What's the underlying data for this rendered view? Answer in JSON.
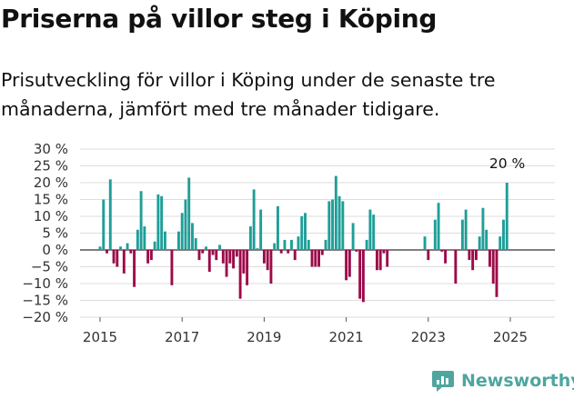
{
  "title": "Priserna på villor steg i Köping",
  "subtitle": "Prisutveckling för villor i Köping under de senaste tre månaderna, jämfört med tre månader tidigare.",
  "brand": "Newsworthy",
  "colors": {
    "positive": "#1f9e98",
    "negative": "#9c0a49",
    "grid": "#dddddd",
    "zero_line": "#333333"
  },
  "chart_data": {
    "type": "bar",
    "y_ticks": [
      "30 %",
      "25 %",
      "20 %",
      "15 %",
      "10 %",
      "5 %",
      "0 %",
      "−5 %",
      "−10 %",
      "−15 %",
      "−20 %"
    ],
    "x_ticks": [
      "2015",
      "2017",
      "2019",
      "2021",
      "2023",
      "2025"
    ],
    "ylim": [
      -20,
      30
    ],
    "grid": true,
    "unit": "%",
    "last_value_label": "20 %",
    "series": [
      {
        "values": [
          1,
          15,
          -1,
          21,
          -4,
          -5,
          1,
          -7,
          2,
          -1,
          -11,
          6,
          17.5,
          7,
          -4,
          -3,
          2.5,
          16.5,
          16,
          5.5,
          0,
          -10.5,
          0,
          5.5,
          11,
          15,
          21.5,
          8,
          3.5,
          -3,
          -1,
          1,
          -6.5,
          -1.5,
          -3,
          1.5,
          -4,
          -8,
          -4,
          -5.5,
          -2,
          -14.5,
          -7,
          -10.5,
          7,
          18,
          0.5,
          12,
          -4,
          -6,
          -10,
          2,
          13,
          -1,
          3,
          -1,
          3,
          -3,
          4,
          10,
          11,
          3,
          -5,
          -5,
          -5,
          -1.5,
          3,
          14.5,
          15,
          22,
          16,
          14.5,
          -9,
          -8,
          8,
          -0.5,
          -14.5,
          -15.5,
          3,
          12,
          10.5,
          -6,
          -6,
          -1,
          -5,
          0,
          0,
          0,
          0,
          0,
          0,
          0,
          0,
          0,
          0,
          4,
          -3,
          0,
          9,
          14,
          -0.5,
          -4,
          0,
          0,
          -10,
          0,
          9,
          12,
          -3,
          -6,
          -3,
          4,
          12.5,
          6,
          -5,
          -10,
          -14,
          4,
          9,
          20
        ]
      }
    ]
  }
}
